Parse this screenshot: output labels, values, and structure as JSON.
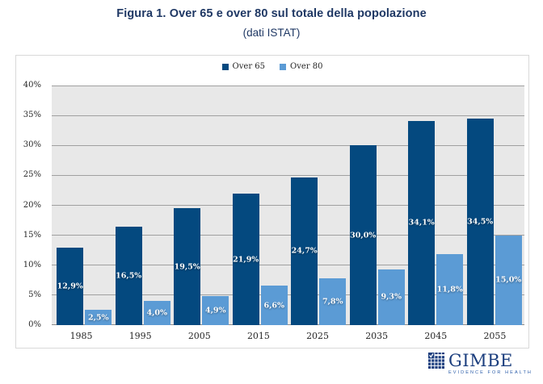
{
  "title": {
    "line1": "Figura 1. Over 65 e over 80 sul totale della popolazione",
    "line2": "(dati ISTAT)"
  },
  "legend": [
    {
      "label": "Over 65",
      "color": "#04497f"
    },
    {
      "label": "Over 80",
      "color": "#5b9bd5"
    }
  ],
  "chart_data": {
    "type": "bar",
    "title": "Figura 1. Over 65 e over 80 sul totale della popolazione (dati ISTAT)",
    "categories": [
      "1985",
      "1995",
      "2005",
      "2015",
      "2025",
      "2035",
      "2045",
      "2055"
    ],
    "series": [
      {
        "name": "Over 65",
        "color": "#04497f",
        "values": [
          12.9,
          16.5,
          19.5,
          21.9,
          24.7,
          30.0,
          34.1,
          34.5
        ],
        "labels": [
          "12,9%",
          "16,5%",
          "19,5%",
          "21,9%",
          "24,7%",
          "30,0%",
          "34,1%",
          "34,5%"
        ]
      },
      {
        "name": "Over 80",
        "color": "#5b9bd5",
        "values": [
          2.5,
          4.0,
          4.9,
          6.6,
          7.8,
          9.3,
          11.8,
          15.0
        ],
        "labels": [
          "2,5%",
          "4,0%",
          "4,9%",
          "6,6%",
          "7,8%",
          "9,3%",
          "11,8%",
          "15,0%"
        ]
      }
    ],
    "ylim": [
      0,
      40
    ],
    "ytick_step": 5,
    "ytick_labels": [
      "0%",
      "5%",
      "10%",
      "15%",
      "20%",
      "25%",
      "30%",
      "35%",
      "40%"
    ],
    "grid": true,
    "legend_position": "top-center",
    "plot_background": "#e8e8e8",
    "gridline_color": "#a0a0a0"
  },
  "footer_logo": {
    "name": "GIMBE",
    "tagline": "EVIDENCE FOR HEALTH"
  }
}
